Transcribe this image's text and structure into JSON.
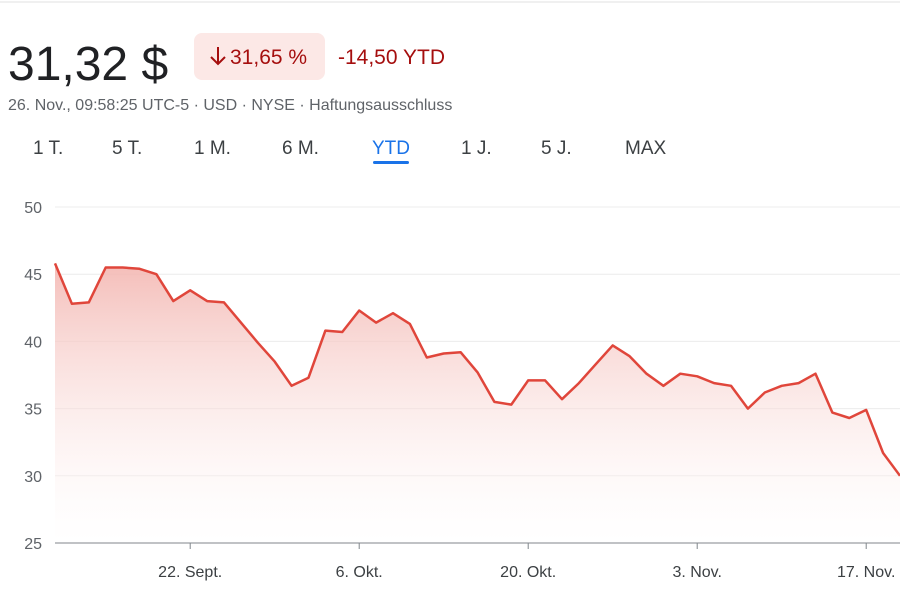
{
  "header": {
    "price": "31,32 $",
    "change_pct": "31,65 %",
    "change_ytd": "-14,50 YTD",
    "meta": "26. Nov., 09:58:25 UTC-5 · USD · NYSE · Haftungsausschluss"
  },
  "tabs": {
    "items": [
      "1 T.",
      "5 T.",
      "1 M.",
      "6 M.",
      "YTD",
      "1 J.",
      "5 J.",
      "MAX"
    ],
    "active": 4
  },
  "chart_data": {
    "type": "line",
    "color": "#e0463b",
    "grid": true,
    "categories": [
      null,
      null,
      null,
      null,
      null,
      null,
      null,
      null,
      "22. Sept.",
      null,
      null,
      null,
      null,
      null,
      null,
      null,
      null,
      null,
      "6. Okt.",
      null,
      null,
      null,
      null,
      null,
      null,
      null,
      null,
      null,
      "20. Okt.",
      null,
      null,
      null,
      null,
      null,
      null,
      null,
      null,
      null,
      "3. Nov.",
      null,
      null,
      null,
      null,
      null,
      null,
      null,
      null,
      null,
      "17. Nov.",
      null,
      null
    ],
    "values": [
      45.8,
      42.8,
      42.9,
      45.5,
      45.5,
      45.4,
      45.0,
      43.0,
      43.8,
      43.0,
      42.9,
      41.4,
      39.9,
      38.5,
      36.7,
      37.3,
      40.8,
      40.7,
      42.3,
      41.4,
      42.1,
      41.3,
      38.8,
      39.1,
      39.2,
      37.7,
      35.5,
      35.3,
      37.1,
      37.1,
      35.7,
      36.9,
      38.3,
      39.7,
      38.9,
      37.6,
      36.7,
      37.6,
      37.4,
      36.9,
      36.7,
      35.0,
      36.2,
      36.7,
      36.9,
      37.6,
      34.7,
      34.3,
      34.9,
      31.7,
      30.0
    ],
    "ylim": [
      25,
      50
    ],
    "yticks": [
      25,
      30,
      35,
      40,
      45,
      50
    ]
  }
}
